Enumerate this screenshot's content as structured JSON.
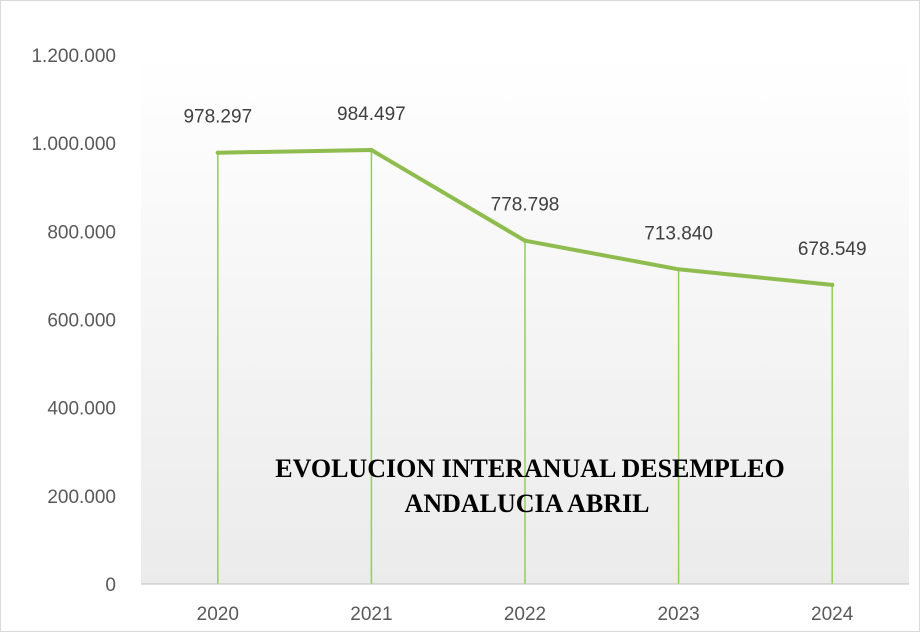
{
  "colors": {
    "line": "#8fbc4e",
    "drop_line": "#92d050",
    "plot_fill_top": "#ffffff",
    "plot_fill_bottom": "#ebebeb",
    "axis": "#bfbfbf"
  },
  "chart_data": {
    "type": "line",
    "title": "EVOLUCION INTERANUAL DESEMPLEO ANDALUCIA ABRIL",
    "title_lines": [
      "EVOLUCION INTERANUAL DESEMPLEO",
      "ANDALUCIA ABRIL"
    ],
    "categories": [
      "2020",
      "2021",
      "2022",
      "2023",
      "2024"
    ],
    "series": [
      {
        "values": [
          978297,
          984497,
          778798,
          713840,
          678549
        ],
        "data_labels": [
          "978.297",
          "984.497",
          "778.798",
          "713.840",
          "678.549"
        ]
      }
    ],
    "ylim": [
      0,
      1200000
    ],
    "y_ticks": [
      0,
      200000,
      400000,
      600000,
      800000,
      1000000,
      1200000
    ],
    "y_tick_labels": [
      "0",
      "200.000",
      "400.000",
      "600.000",
      "800.000",
      "1.000.000",
      "1.200.000"
    ],
    "drop_lines": true,
    "grid": false,
    "legend": "none"
  }
}
